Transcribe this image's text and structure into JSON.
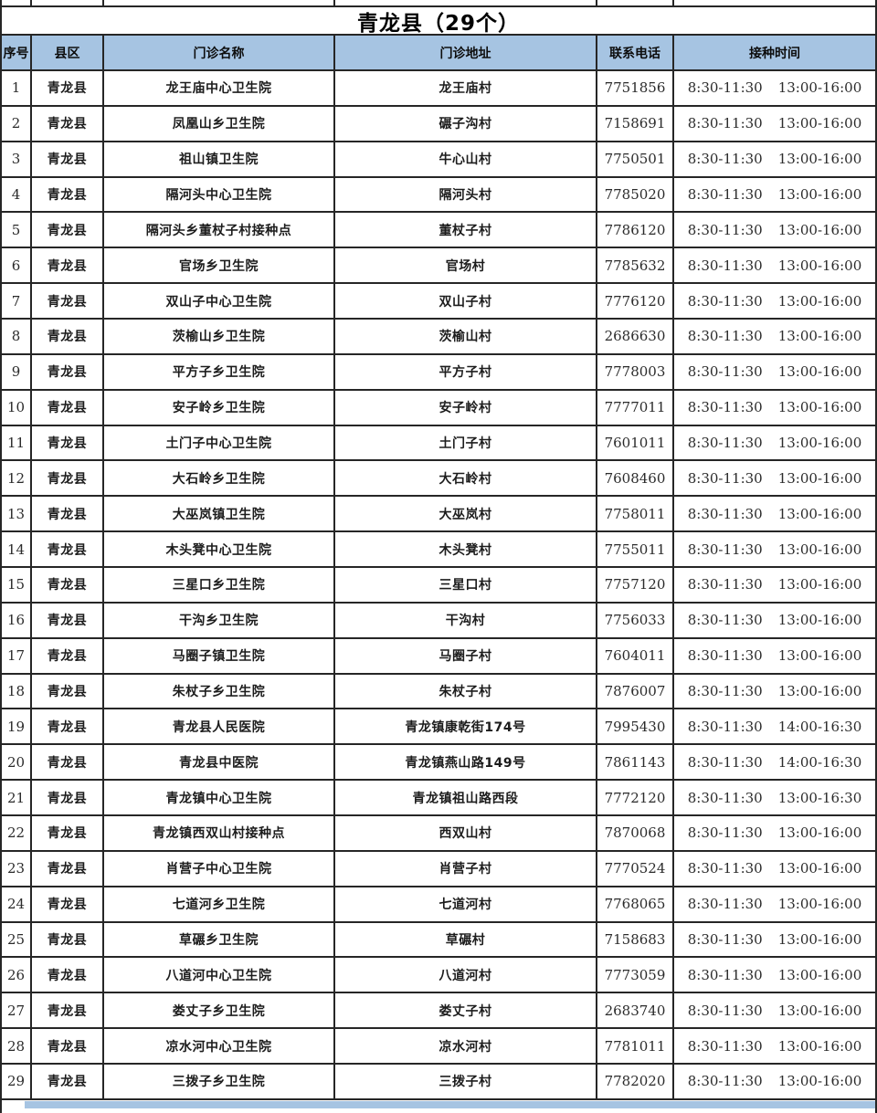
{
  "title": "青龙县（29个）",
  "colors": {
    "header_bg": "#a6c4e2",
    "border": "#262626",
    "text": "#1f1f1f"
  },
  "table": {
    "headers": {
      "no": "序号",
      "county": "县区",
      "name": "门诊名称",
      "address": "门诊地址",
      "phone": "联系电话",
      "time": "接种时间"
    },
    "rows": [
      {
        "no": "1",
        "county": "青龙县",
        "name": "龙王庙中心卫生院",
        "address": "龙王庙村",
        "phone": "7751856",
        "time_am": "8:30-11:30",
        "time_pm": "13:00-16:00"
      },
      {
        "no": "2",
        "county": "青龙县",
        "name": "凤凰山乡卫生院",
        "address": "碾子沟村",
        "phone": "7158691",
        "time_am": "8:30-11:30",
        "time_pm": "13:00-16:00"
      },
      {
        "no": "3",
        "county": "青龙县",
        "name": "祖山镇卫生院",
        "address": "牛心山村",
        "phone": "7750501",
        "time_am": "8:30-11:30",
        "time_pm": "13:00-16:00"
      },
      {
        "no": "4",
        "county": "青龙县",
        "name": "隔河头中心卫生院",
        "address": "隔河头村",
        "phone": "7785020",
        "time_am": "8:30-11:30",
        "time_pm": "13:00-16:00"
      },
      {
        "no": "5",
        "county": "青龙县",
        "name": "隔河头乡董杖子村接种点",
        "address": "董杖子村",
        "phone": "7786120",
        "time_am": "8:30-11:30",
        "time_pm": "13:00-16:00"
      },
      {
        "no": "6",
        "county": "青龙县",
        "name": "官场乡卫生院",
        "address": "官场村",
        "phone": "7785632",
        "time_am": "8:30-11:30",
        "time_pm": "13:00-16:00"
      },
      {
        "no": "7",
        "county": "青龙县",
        "name": "双山子中心卫生院",
        "address": "双山子村",
        "phone": "7776120",
        "time_am": "8:30-11:30",
        "time_pm": "13:00-16:00"
      },
      {
        "no": "8",
        "county": "青龙县",
        "name": "茨榆山乡卫生院",
        "address": "茨榆山村",
        "phone": "2686630",
        "time_am": "8:30-11:30",
        "time_pm": "13:00-16:00"
      },
      {
        "no": "9",
        "county": "青龙县",
        "name": "平方子乡卫生院",
        "address": "平方子村",
        "phone": "7778003",
        "time_am": "8:30-11:30",
        "time_pm": "13:00-16:00"
      },
      {
        "no": "10",
        "county": "青龙县",
        "name": "安子岭乡卫生院",
        "address": "安子岭村",
        "phone": "7777011",
        "time_am": "8:30-11:30",
        "time_pm": "13:00-16:00"
      },
      {
        "no": "11",
        "county": "青龙县",
        "name": "土门子中心卫生院",
        "address": "土门子村",
        "phone": "7601011",
        "time_am": "8:30-11:30",
        "time_pm": "13:00-16:00"
      },
      {
        "no": "12",
        "county": "青龙县",
        "name": "大石岭乡卫生院",
        "address": "大石岭村",
        "phone": "7608460",
        "time_am": "8:30-11:30",
        "time_pm": "13:00-16:00"
      },
      {
        "no": "13",
        "county": "青龙县",
        "name": "大巫岚镇卫生院",
        "address": "大巫岚村",
        "phone": "7758011",
        "time_am": "8:30-11:30",
        "time_pm": "13:00-16:00"
      },
      {
        "no": "14",
        "county": "青龙县",
        "name": "木头凳中心卫生院",
        "address": "木头凳村",
        "phone": "7755011",
        "time_am": "8:30-11:30",
        "time_pm": "13:00-16:00"
      },
      {
        "no": "15",
        "county": "青龙县",
        "name": "三星口乡卫生院",
        "address": "三星口村",
        "phone": "7757120",
        "time_am": "8:30-11:30",
        "time_pm": "13:00-16:00"
      },
      {
        "no": "16",
        "county": "青龙县",
        "name": "干沟乡卫生院",
        "address": "干沟村",
        "phone": "7756033",
        "time_am": "8:30-11:30",
        "time_pm": "13:00-16:00"
      },
      {
        "no": "17",
        "county": "青龙县",
        "name": "马圈子镇卫生院",
        "address": "马圈子村",
        "phone": "7604011",
        "time_am": "8:30-11:30",
        "time_pm": "13:00-16:00"
      },
      {
        "no": "18",
        "county": "青龙县",
        "name": "朱杖子乡卫生院",
        "address": "朱杖子村",
        "phone": "7876007",
        "time_am": "8:30-11:30",
        "time_pm": "13:00-16:00"
      },
      {
        "no": "19",
        "county": "青龙县",
        "name": "青龙县人民医院",
        "address": "青龙镇康乾街174号",
        "phone": "7995430",
        "time_am": "8:30-11:30",
        "time_pm": "14:00-16:30"
      },
      {
        "no": "20",
        "county": "青龙县",
        "name": "青龙县中医院",
        "address": "青龙镇燕山路149号",
        "phone": "7861143",
        "time_am": "8:30-11:30",
        "time_pm": "14:00-16:30"
      },
      {
        "no": "21",
        "county": "青龙县",
        "name": "青龙镇中心卫生院",
        "address": "青龙镇祖山路西段",
        "phone": "7772120",
        "time_am": "8:30-11:30",
        "time_pm": "13:00-16:30"
      },
      {
        "no": "22",
        "county": "青龙县",
        "name": "青龙镇西双山村接种点",
        "address": "西双山村",
        "phone": "7870068",
        "time_am": "8:30-11:30",
        "time_pm": "13:00-16:00"
      },
      {
        "no": "23",
        "county": "青龙县",
        "name": "肖营子中心卫生院",
        "address": "肖营子村",
        "phone": "7770524",
        "time_am": "8:30-11:30",
        "time_pm": "13:00-16:00"
      },
      {
        "no": "24",
        "county": "青龙县",
        "name": "七道河乡卫生院",
        "address": "七道河村",
        "phone": "7768065",
        "time_am": "8:30-11:30",
        "time_pm": "13:00-16:00"
      },
      {
        "no": "25",
        "county": "青龙县",
        "name": "草碾乡卫生院",
        "address": "草碾村",
        "phone": "7158683",
        "time_am": "8:30-11:30",
        "time_pm": "13:00-16:00"
      },
      {
        "no": "26",
        "county": "青龙县",
        "name": "八道河中心卫生院",
        "address": "八道河村",
        "phone": "7773059",
        "time_am": "8:30-11:30",
        "time_pm": "13:00-16:00"
      },
      {
        "no": "27",
        "county": "青龙县",
        "name": "娄丈子乡卫生院",
        "address": "娄丈子村",
        "phone": "2683740",
        "time_am": "8:30-11:30",
        "time_pm": "13:00-16:00"
      },
      {
        "no": "28",
        "county": "青龙县",
        "name": "凉水河中心卫生院",
        "address": "凉水河村",
        "phone": "7781011",
        "time_am": "8:30-11:30",
        "time_pm": "13:00-16:00"
      },
      {
        "no": "29",
        "county": "青龙县",
        "name": "三拨子乡卫生院",
        "address": "三拨子村",
        "phone": "7782020",
        "time_am": "8:30-11:30",
        "time_pm": "13:00-16:00"
      }
    ]
  }
}
